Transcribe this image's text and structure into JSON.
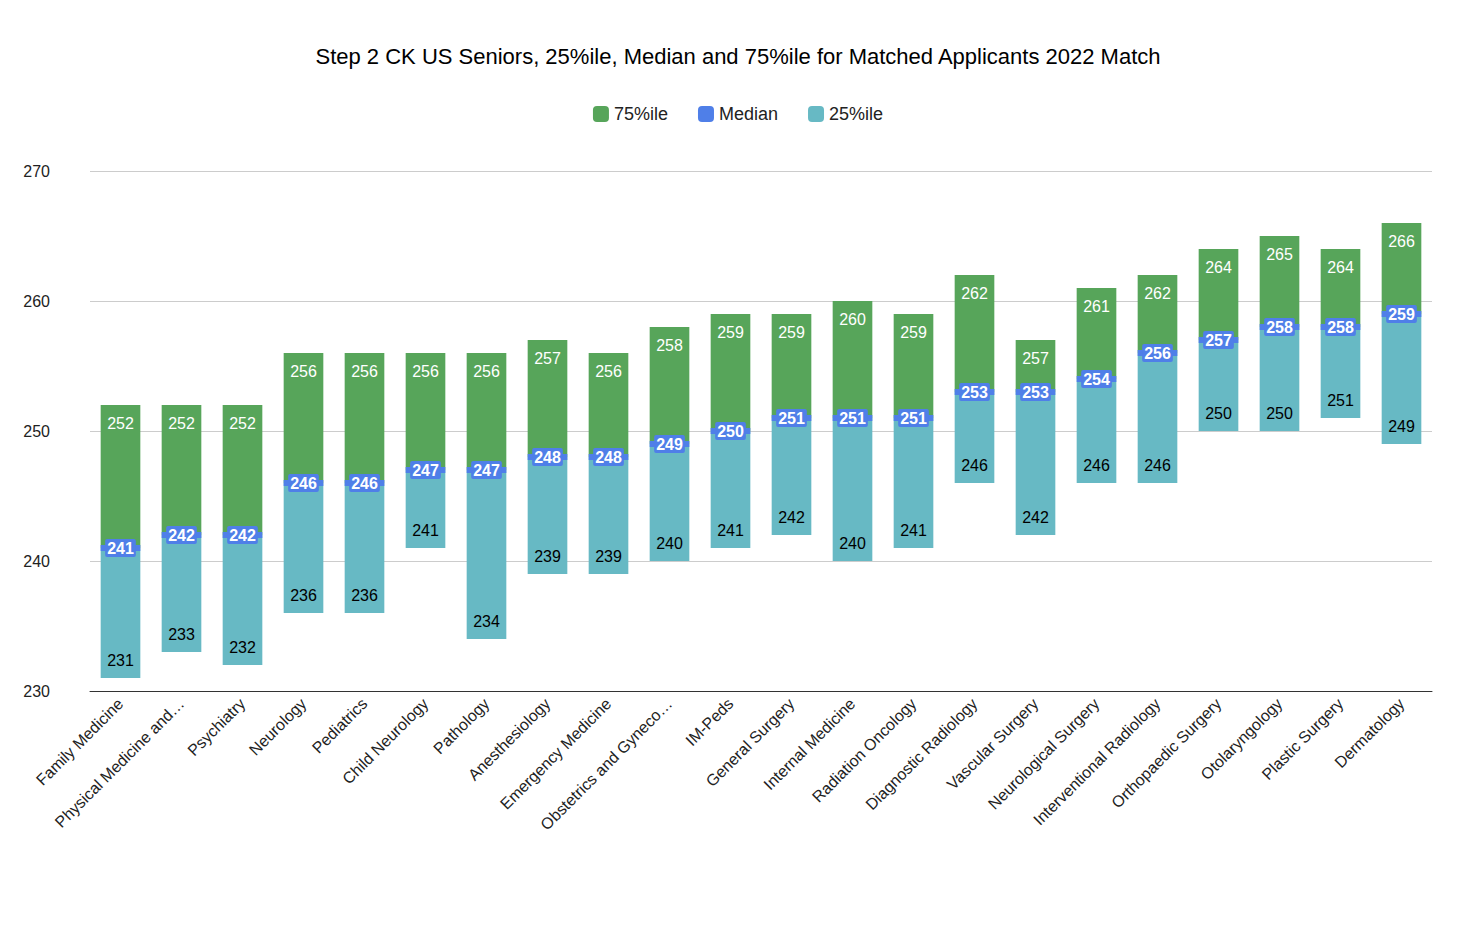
{
  "chart_data": {
    "type": "bar",
    "title": "Step 2 CK US Seniors, 25%ile, Median and 75%ile for Matched Applicants 2022 Match",
    "categories": [
      "Family Medicine",
      "Physical Medicine and…",
      "Psychiatry",
      "Neurology",
      "Pediatrics",
      "Child Neurology",
      "Pathology",
      "Anesthesiology",
      "Emergency Medicine",
      "Obstetrics and Gyneco…",
      "IM-Peds",
      "General Surgery",
      "Internal Medicine",
      "Radiation Oncology",
      "Diagnostic Radiology",
      "Vascular Surgery",
      "Neurological Surgery",
      "Interventional Radiology",
      "Orthopaedic Surgery",
      "Otolaryngology",
      "Plastic Surgery",
      "Dermatology"
    ],
    "series": [
      {
        "name": "75%ile",
        "color": "#57a55a",
        "values": [
          252,
          252,
          252,
          256,
          256,
          256,
          256,
          257,
          256,
          258,
          259,
          259,
          260,
          259,
          262,
          257,
          261,
          262,
          264,
          265,
          264,
          266
        ]
      },
      {
        "name": "Median",
        "color": "#4f7fe8",
        "values": [
          241,
          242,
          242,
          246,
          246,
          247,
          247,
          248,
          248,
          249,
          250,
          251,
          251,
          251,
          253,
          253,
          254,
          256,
          257,
          258,
          258,
          259
        ]
      },
      {
        "name": "25%ile",
        "color": "#67b9c4",
        "values": [
          231,
          233,
          232,
          236,
          236,
          241,
          234,
          239,
          239,
          240,
          241,
          242,
          240,
          241,
          246,
          242,
          246,
          246,
          250,
          250,
          251,
          249
        ]
      }
    ],
    "ylim": [
      230,
      270
    ],
    "yticks": [
      230,
      240,
      250,
      260,
      270
    ],
    "grid": true,
    "legend": "top",
    "data_labels": true
  }
}
